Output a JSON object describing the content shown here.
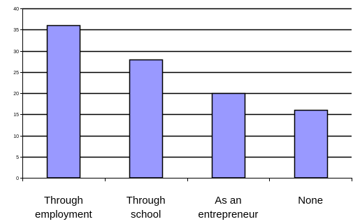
{
  "chart_data": {
    "type": "bar",
    "categories": [
      [
        "Through",
        "employment"
      ],
      [
        "Through",
        "school"
      ],
      [
        "As an",
        "entrepreneur"
      ],
      [
        "None"
      ]
    ],
    "values": [
      36,
      28,
      20,
      16
    ],
    "title": "",
    "xlabel": "",
    "ylabel": "",
    "ylim": [
      0,
      40
    ],
    "yticks": [
      0,
      5,
      10,
      15,
      20,
      25,
      30,
      35,
      40
    ],
    "grid": true,
    "legend": "none",
    "colors": {
      "bar_fill": "#9999ff",
      "bar_stroke": "#000000",
      "grid": "#000000",
      "axis": "#000000"
    }
  }
}
